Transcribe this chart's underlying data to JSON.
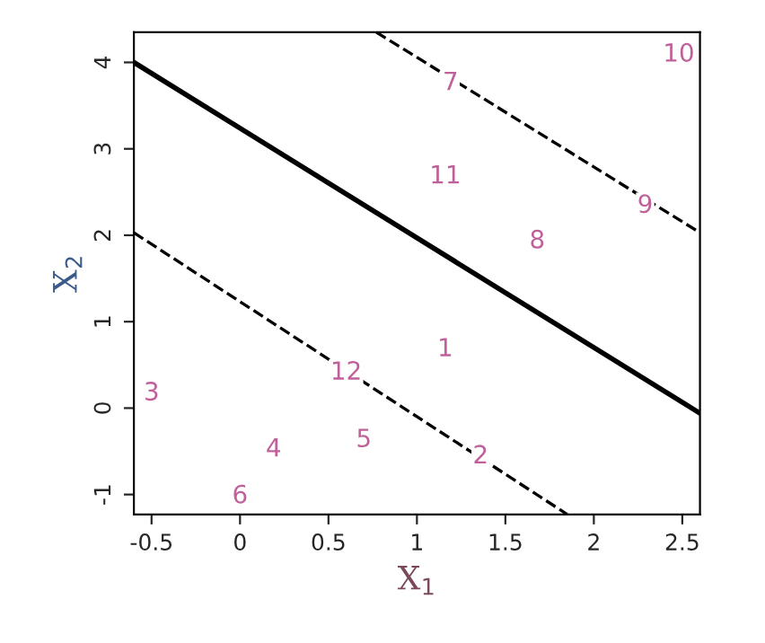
{
  "chart_data": {
    "type": "line",
    "xlabel": "X$_{1}$",
    "ylabel": "X$_{2}$",
    "grid": false,
    "legend": false,
    "xlim": [
      -0.6,
      2.6
    ],
    "ylim": [
      -1.23,
      4.35
    ],
    "xticks": [
      -0.5,
      0,
      0.5,
      1,
      1.5,
      2,
      2.5
    ],
    "yticks": [
      -1,
      0,
      1,
      2,
      3,
      4
    ],
    "annotations": [
      {
        "text": "1",
        "x": 1.16,
        "y": 0.68
      },
      {
        "text": "2",
        "x": 1.36,
        "y": -0.56
      },
      {
        "text": "3",
        "x": -0.5,
        "y": 0.17
      },
      {
        "text": "4",
        "x": 0.19,
        "y": -0.48
      },
      {
        "text": "5",
        "x": 0.7,
        "y": -0.37
      },
      {
        "text": "6",
        "x": 0.0,
        "y": -1.02
      },
      {
        "text": "11",
        "x": 1.16,
        "y": 2.68
      },
      {
        "text": "7",
        "x": 1.19,
        "y": 3.76
      },
      {
        "text": "8",
        "x": 1.68,
        "y": 1.93
      },
      {
        "text": "9",
        "x": 2.29,
        "y": 2.34
      },
      {
        "text": "10",
        "x": 2.48,
        "y": 4.09
      },
      {
        "text": "12",
        "x": 0.6,
        "y": 0.41
      }
    ],
    "series": [
      {
        "color": "#000000",
        "line_style": "solid",
        "x": [
          -0.6,
          2.6
        ],
        "values": [
          4.0,
          -0.06
        ]
      },
      {
        "color": "#000000",
        "line_style": "dashed",
        "x": [
          -0.6,
          1.85
        ],
        "values": [
          2.03,
          -1.23
        ]
      },
      {
        "color": "#000000",
        "line_style": "dashed",
        "x": [
          0.77,
          2.6
        ],
        "values": [
          4.35,
          2.03
        ]
      }
    ]
  }
}
